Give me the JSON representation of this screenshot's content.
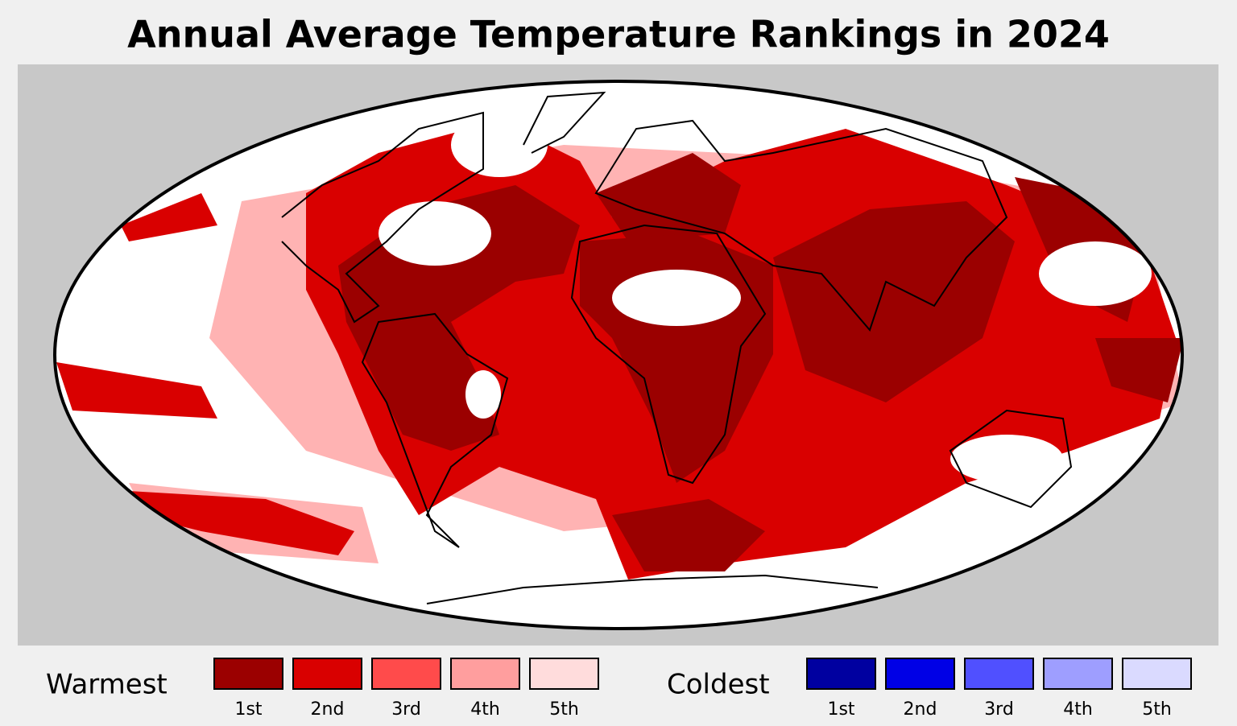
{
  "title": "Annual Average Temperature Rankings in 2024",
  "legend": [
    {
      "label": "Warmest",
      "items": [
        {
          "label": "1st",
          "color": "#9b0000"
        },
        {
          "label": "2nd",
          "color": "#d90000"
        },
        {
          "label": "3rd",
          "color": "#ff4b4b"
        },
        {
          "label": "4th",
          "color": "#ff9e9e"
        },
        {
          "label": "5th",
          "color": "#ffdcdc"
        }
      ]
    },
    {
      "label": "Coldest",
      "items": [
        {
          "label": "1st",
          "color": "#0000a0"
        },
        {
          "label": "2nd",
          "color": "#0000e6"
        },
        {
          "label": "3rd",
          "color": "#5050ff"
        },
        {
          "label": "4th",
          "color": "#9e9eff"
        },
        {
          "label": "5th",
          "color": "#dadaff"
        }
      ]
    }
  ]
}
